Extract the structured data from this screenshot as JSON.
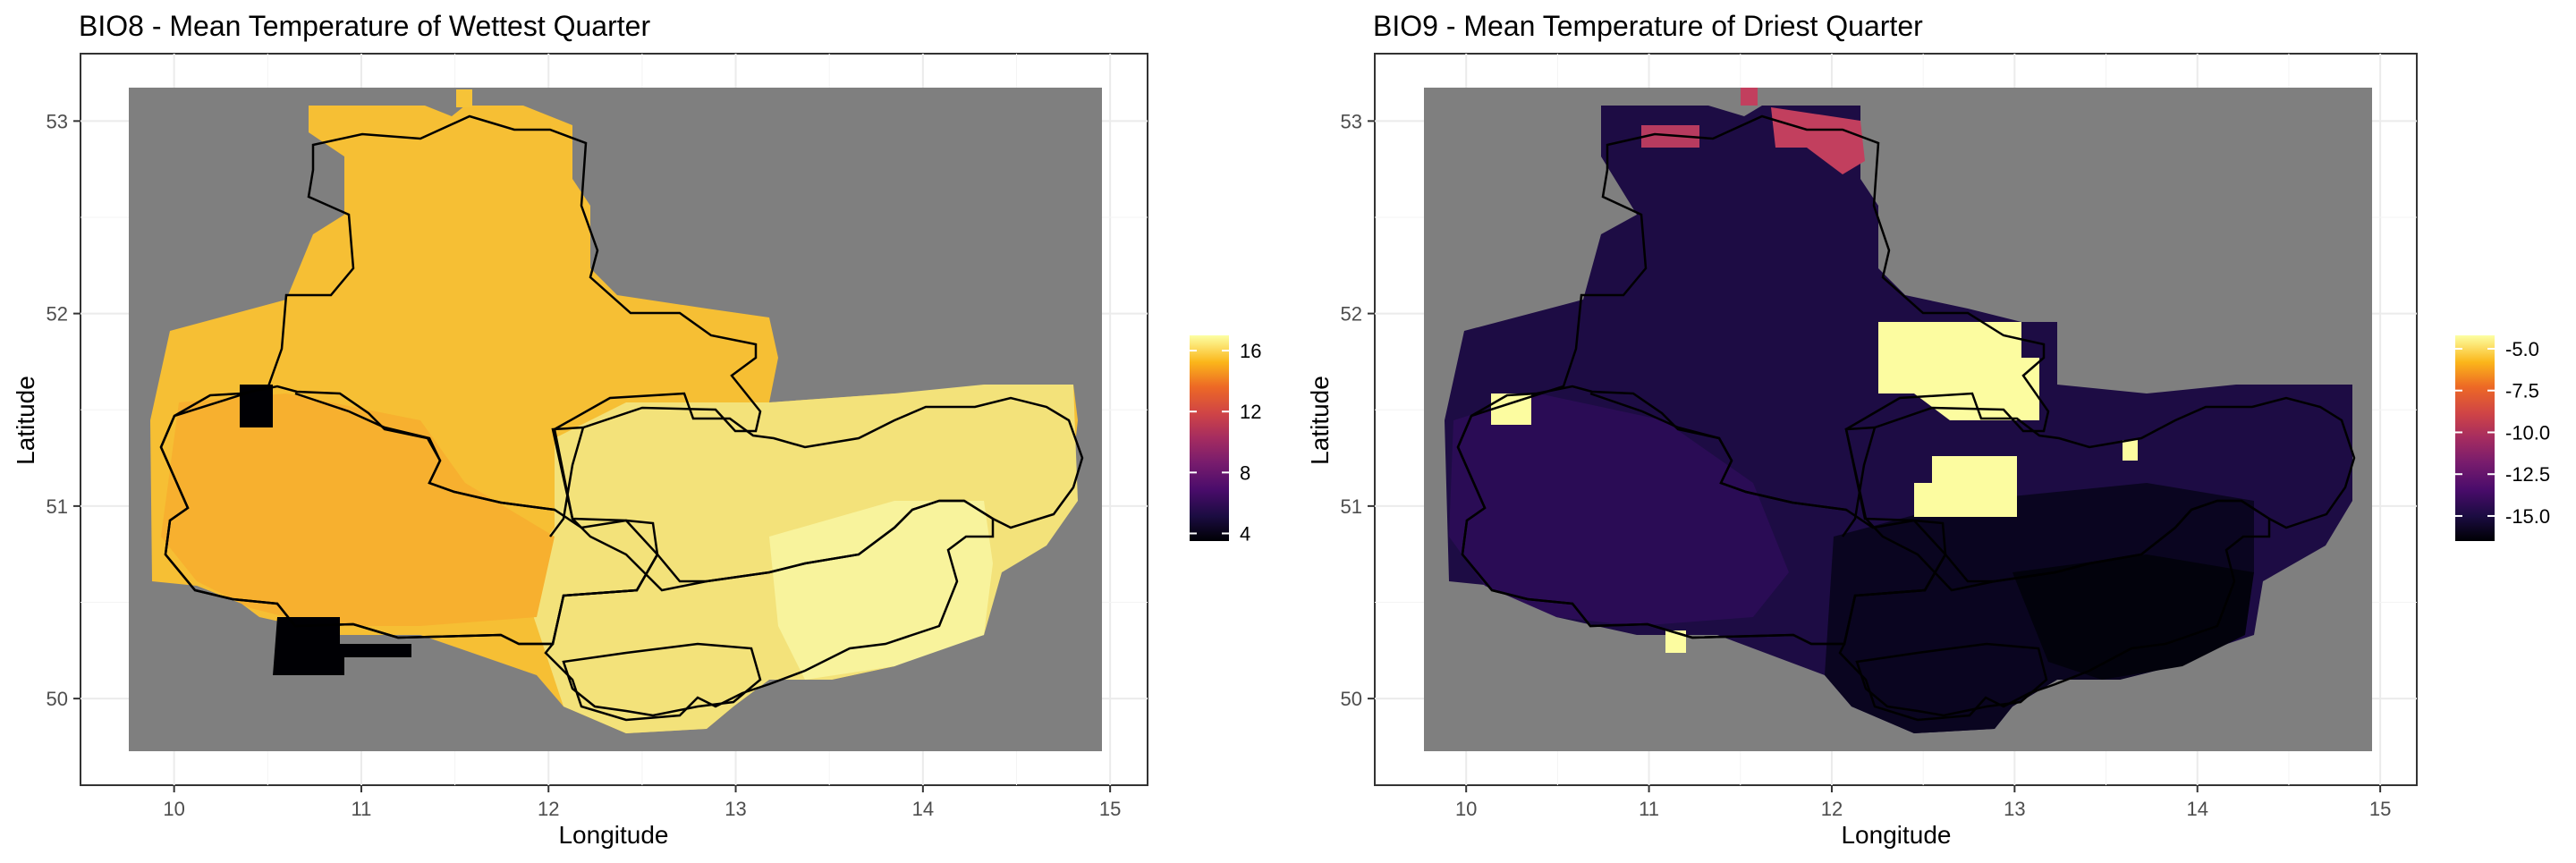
{
  "chart_data": [
    {
      "type": "heatmap",
      "title": "BIO8 - Mean Temperature of Wettest Quarter",
      "xlabel": "Longitude",
      "ylabel": "Latitude",
      "xlim": [
        9.5,
        15.2
      ],
      "ylim": [
        49.55,
        53.35
      ],
      "x_ticks": [
        10,
        11,
        12,
        13,
        14,
        15
      ],
      "y_ticks": [
        50,
        51,
        52,
        53
      ],
      "grid": true,
      "background_fill": "#7f7f7f",
      "color_scale": "inferno",
      "legend": {
        "placement": "right",
        "ticks": [
          4,
          8,
          12,
          16
        ],
        "range": [
          3.5,
          17
        ]
      },
      "values_description_range": [
        3.5,
        17
      ],
      "colors": {
        "low": "#000004",
        "mid": "#bc3754",
        "high": "#fcffa4"
      }
    },
    {
      "type": "heatmap",
      "title": "BIO9 - Mean Temperature of Driest Quarter",
      "xlabel": "Longitude",
      "ylabel": "Latitude",
      "xlim": [
        9.5,
        15.2
      ],
      "ylim": [
        49.55,
        53.35
      ],
      "x_ticks": [
        10,
        11,
        12,
        13,
        14,
        15
      ],
      "y_ticks": [
        50,
        51,
        52,
        53
      ],
      "grid": true,
      "background_fill": "#7f7f7f",
      "color_scale": "inferno",
      "legend": {
        "placement": "right",
        "ticks": [
          -5.0,
          -7.5,
          -10.0,
          -12.5,
          -15.0
        ],
        "tick_labels": [
          "-5.0",
          "-7.5",
          "-10.0",
          "-12.5",
          "-15.0"
        ],
        "range": [
          -16.5,
          -4.2
        ]
      },
      "colors": {
        "low": "#000004",
        "mid": "#bc3754",
        "high": "#fcffa4"
      }
    }
  ]
}
